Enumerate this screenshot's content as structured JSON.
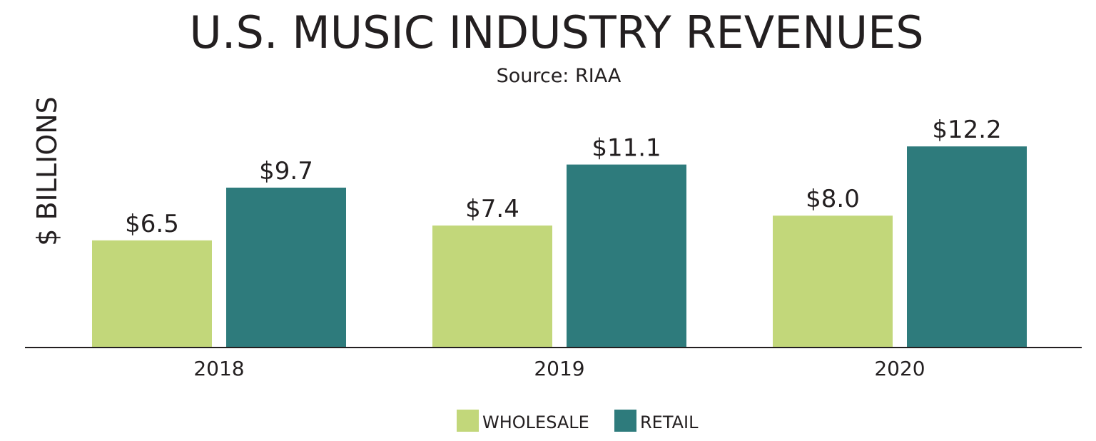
{
  "chart_data": {
    "type": "bar",
    "title": "U.S. MUSIC INDUSTRY REVENUES",
    "subtitle": "Source: RIAA",
    "xlabel": "",
    "ylabel": "$ BILLIONS",
    "categories": [
      "2018",
      "2019",
      "2020"
    ],
    "series": [
      {
        "name": "WHOLESALE",
        "values": [
          6.5,
          7.4,
          8.0
        ],
        "labels": [
          "$6.5",
          "$7.4",
          "$8.0"
        ],
        "color": "#c2d77a"
      },
      {
        "name": "RETAIL",
        "values": [
          9.7,
          11.1,
          12.2
        ],
        "labels": [
          "$9.7",
          "$11.1",
          "$12.2"
        ],
        "color": "#2e7b7c"
      }
    ],
    "ylim": [
      0,
      15
    ],
    "grid": false,
    "legend_position": "bottom-center",
    "axis_color": "#231f20"
  }
}
